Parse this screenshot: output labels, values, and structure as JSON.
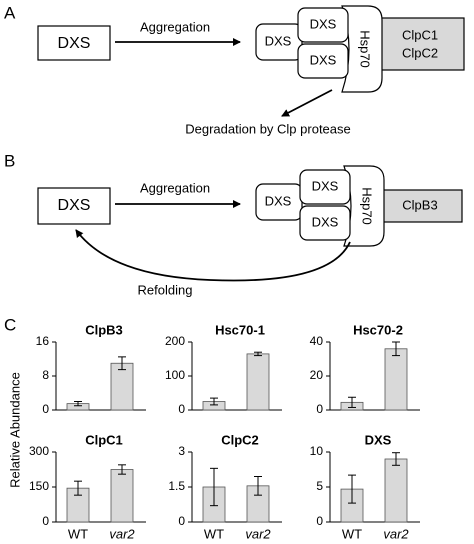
{
  "diagram": {
    "panel_a": {
      "label": "A",
      "substrate": "DXS",
      "arrow_label": "Aggregation",
      "complex": [
        "DXS",
        "DXS",
        "DXS"
      ],
      "chaperone": "Hsp70",
      "partner": [
        "ClpC1",
        "ClpC2"
      ],
      "outcome": "Degradation by Clp protease"
    },
    "panel_b": {
      "label": "B",
      "substrate": "DXS",
      "arrow_label": "Aggregation",
      "complex": [
        "DXS",
        "DXS",
        "DXS"
      ],
      "chaperone": "Hsp70",
      "partner": [
        "ClpB3"
      ],
      "outcome": "Refolding"
    },
    "panel_c": {
      "label": "C",
      "ylabel": "Relative  Abundance"
    }
  },
  "chart_data": [
    {
      "type": "bar",
      "title": "ClpB3",
      "categories": [
        null,
        null
      ],
      "values": [
        1.5,
        11
      ],
      "errors": [
        0.5,
        1.5
      ],
      "color": "#d9d9d9",
      "ylim": [
        0,
        16
      ],
      "yticks": [
        0,
        8,
        16
      ]
    },
    {
      "type": "bar",
      "title": "Hsc70-1",
      "categories": [
        null,
        null
      ],
      "values": [
        25,
        165
      ],
      "errors": [
        10,
        5
      ],
      "color": "#d9d9d9",
      "ylim": [
        0,
        200
      ],
      "yticks": [
        0,
        100,
        200
      ]
    },
    {
      "type": "bar",
      "title": "Hsc70-2",
      "categories": [
        null,
        null
      ],
      "values": [
        4.5,
        36
      ],
      "errors": [
        3,
        4
      ],
      "color": "#d9d9d9",
      "ylim": [
        0,
        40
      ],
      "yticks": [
        0,
        20,
        40
      ]
    },
    {
      "type": "bar",
      "title": "ClpC1",
      "categories": [
        "WT",
        "var2"
      ],
      "values": [
        145,
        225
      ],
      "errors": [
        30,
        20
      ],
      "color": "#d9d9d9",
      "ylim": [
        0,
        300
      ],
      "yticks": [
        0,
        150,
        300
      ]
    },
    {
      "type": "bar",
      "title": "ClpC2",
      "categories": [
        "WT",
        "var2"
      ],
      "values": [
        1.5,
        1.55
      ],
      "errors": [
        0.8,
        0.4
      ],
      "color": "#d9d9d9",
      "ylim": [
        0,
        3
      ],
      "yticks": [
        0,
        1.5,
        3
      ]
    },
    {
      "type": "bar",
      "title": "DXS",
      "categories": [
        "WT",
        "var2"
      ],
      "values": [
        4.7,
        9
      ],
      "errors": [
        2,
        0.9
      ],
      "color": "#d9d9d9",
      "ylim": [
        0,
        10
      ],
      "yticks": [
        0,
        5,
        10
      ]
    }
  ]
}
